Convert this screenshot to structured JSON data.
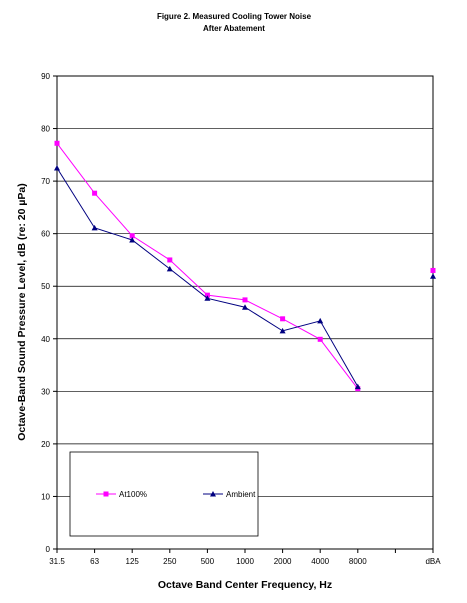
{
  "chart_data": {
    "type": "line",
    "title_line1": "Figure 2. Measured Cooling Tower Noise",
    "title_line2": "After Abatement",
    "xlabel": "Octave Band Center Frequency, Hz",
    "ylabel": "Octave-Band Sound Pressure Level, dB (re: 20 µPa)",
    "categories": [
      "31.5",
      "63",
      "125",
      "250",
      "500",
      "1000",
      "2000",
      "4000",
      "8000",
      "",
      "dBA"
    ],
    "ylim": [
      0,
      90
    ],
    "yticks": [
      "0",
      "10",
      "20",
      "30",
      "40",
      "50",
      "60",
      "70",
      "80",
      "90"
    ],
    "grid": true,
    "legend_position": "bottom-left",
    "series": [
      {
        "name": "At100%",
        "color": "#ff00ff",
        "marker": "square",
        "values": [
          77.2,
          67.7,
          59.6,
          55.0,
          48.3,
          47.4,
          43.8,
          39.9,
          30.5,
          null,
          53.0
        ]
      },
      {
        "name": "Ambient",
        "color": "#000080",
        "marker": "triangle",
        "values": [
          72.5,
          61.1,
          58.8,
          53.3,
          47.7,
          46.0,
          41.5,
          43.4,
          30.9,
          null,
          51.9
        ]
      }
    ]
  }
}
